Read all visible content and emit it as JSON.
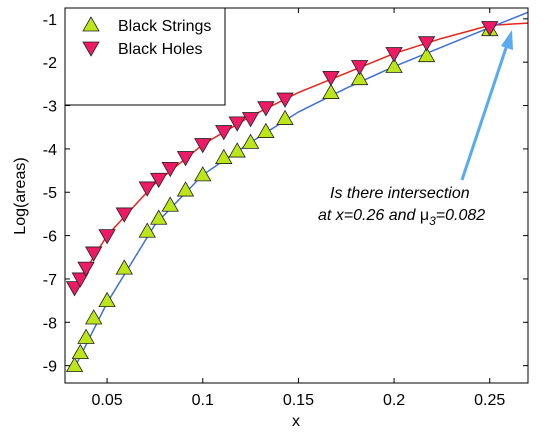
{
  "chart_data": {
    "type": "scatter",
    "xlabel": "x",
    "ylabel": "Log(areas)",
    "xlim": [
      0.028,
      0.27
    ],
    "ylim": [
      -9.4,
      -0.75
    ],
    "xticks": [
      0.05,
      0.1,
      0.15,
      0.2,
      0.25
    ],
    "yticks": [
      -9,
      -8,
      -7,
      -6,
      -5,
      -4,
      -3,
      -2,
      -1
    ],
    "legend": "upper left",
    "series": [
      {
        "name": "Black Strings",
        "color": "#bde61a",
        "marker": "triangle-up",
        "x": [
          0.033,
          0.036,
          0.039,
          0.043,
          0.05,
          0.059,
          0.071,
          0.077,
          0.083,
          0.091,
          0.1,
          0.111,
          0.118,
          0.125,
          0.133,
          0.143,
          0.167,
          0.182,
          0.2,
          0.217,
          0.25
        ],
        "values": [
          -9.0,
          -8.7,
          -8.35,
          -7.9,
          -7.5,
          -6.75,
          -5.9,
          -5.6,
          -5.3,
          -4.95,
          -4.6,
          -4.2,
          -4.05,
          -3.85,
          -3.6,
          -3.3,
          -2.7,
          -2.38,
          -2.1,
          -1.85,
          -1.25
        ]
      },
      {
        "name": "Black Holes",
        "color": "#ee1a66",
        "marker": "triangle-down",
        "x": [
          0.033,
          0.036,
          0.039,
          0.043,
          0.05,
          0.059,
          0.071,
          0.077,
          0.083,
          0.091,
          0.1,
          0.111,
          0.118,
          0.125,
          0.133,
          0.143,
          0.167,
          0.182,
          0.2,
          0.217,
          0.25
        ],
        "values": [
          -7.2,
          -7.0,
          -6.75,
          -6.4,
          -6.0,
          -5.5,
          -4.9,
          -4.7,
          -4.45,
          -4.2,
          -3.9,
          -3.6,
          -3.4,
          -3.3,
          -3.05,
          -2.85,
          -2.35,
          -2.1,
          -1.8,
          -1.55,
          -1.2
        ]
      }
    ],
    "curves": [
      {
        "color": "#e8251c",
        "x": [
          0.033,
          0.05,
          0.075,
          0.1,
          0.125,
          0.15,
          0.175,
          0.2,
          0.225,
          0.25,
          0.27
        ],
        "values": [
          -7.2,
          -6.0,
          -4.8,
          -3.9,
          -3.25,
          -2.7,
          -2.25,
          -1.8,
          -1.45,
          -1.15,
          -1.1
        ]
      },
      {
        "color": "#3f6fd8",
        "x": [
          0.033,
          0.05,
          0.075,
          0.1,
          0.125,
          0.15,
          0.175,
          0.2,
          0.225,
          0.25,
          0.27
        ],
        "values": [
          -9.05,
          -7.55,
          -5.75,
          -4.6,
          -3.85,
          -3.15,
          -2.6,
          -2.1,
          -1.65,
          -1.2,
          -0.85
        ]
      }
    ],
    "annotation": {
      "line1": "Is there intersection",
      "line2_a": "at x=0.26  and ",
      "mu": "μ",
      "sub": "3",
      "line2_b": "=0.082"
    }
  }
}
